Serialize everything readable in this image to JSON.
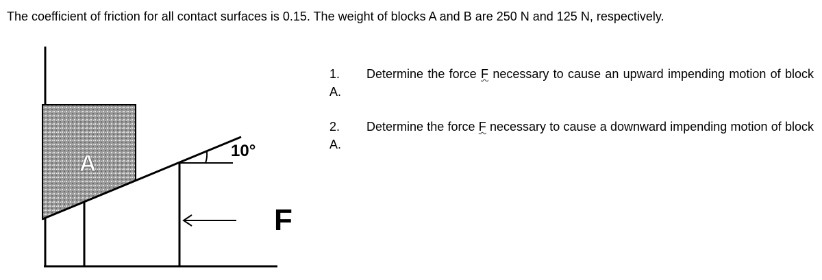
{
  "problem": {
    "statement": "The coefficient of friction for all contact surfaces is 0.15. The weight of blocks A and B are 250 N and 125 N, respectively.",
    "items": [
      {
        "number": "1.",
        "before": "Determine the force",
        "symbol": "F",
        "after": "necessary to cause an upward impending motion of block A."
      },
      {
        "number": "2.",
        "before": "Determine the force",
        "symbol": "F",
        "after": "necessary to cause a downward impending motion of block A."
      }
    ]
  },
  "figure": {
    "block": "A",
    "angle": "10°",
    "force": "F"
  }
}
